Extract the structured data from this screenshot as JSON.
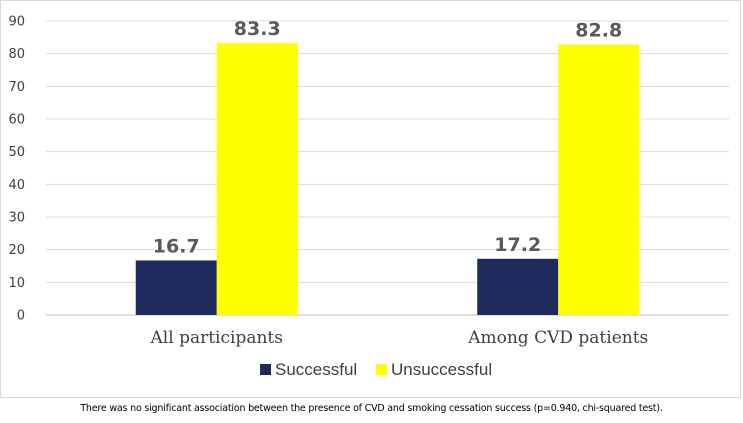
{
  "chart_data": {
    "type": "bar",
    "title": "",
    "xlabel": "",
    "ylabel": "",
    "categories": [
      "All participants",
      "Among CVD patients"
    ],
    "series": [
      {
        "name": "Successful",
        "values": [
          16.7,
          17.2
        ],
        "labels": [
          "16.7",
          "17.2"
        ],
        "color": "#1f2a5c"
      },
      {
        "name": "Unsuccessful",
        "values": [
          83.3,
          82.8
        ],
        "labels": [
          "83.3",
          "82.8"
        ],
        "color": "#ffff00"
      }
    ],
    "ylim": [
      0,
      90
    ],
    "yticks": [
      0,
      10,
      20,
      30,
      40,
      50,
      60,
      70,
      80,
      90
    ],
    "ytick_labels": [
      "0",
      "10",
      "20",
      "30",
      "40",
      "50",
      "60",
      "70",
      "80",
      "90"
    ],
    "grid": true,
    "legend_position": "bottom"
  },
  "caption": "There was no significant association between the presence of CVD and smoking cessation success (p=0.940, chi-squared test)."
}
